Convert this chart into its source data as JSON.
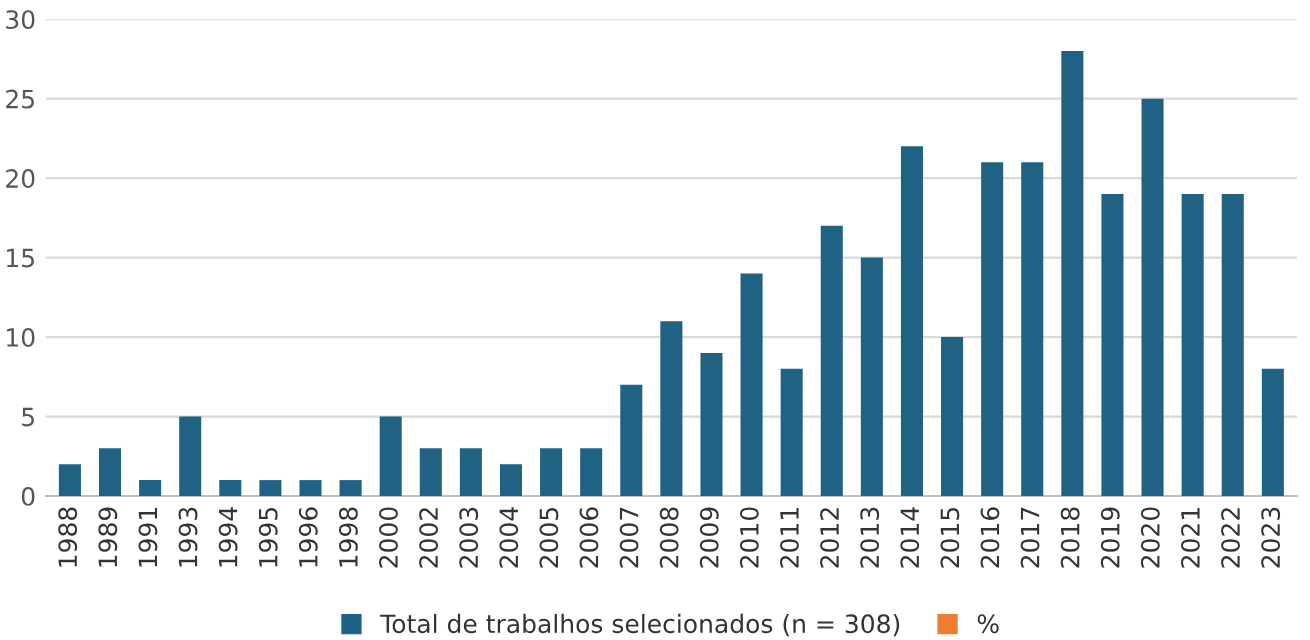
{
  "chart_data": {
    "type": "bar",
    "categories": [
      "1988",
      "1989",
      "1991",
      "1993",
      "1994",
      "1995",
      "1996",
      "1998",
      "2000",
      "2002",
      "2003",
      "2004",
      "2005",
      "2006",
      "2007",
      "2008",
      "2009",
      "2010",
      "2011",
      "2012",
      "2013",
      "2014",
      "2015",
      "2016",
      "2017",
      "2018",
      "2019",
      "2020",
      "2021",
      "2022",
      "2023"
    ],
    "series": [
      {
        "name": "Total de trabalhos selecionados (n = 308)",
        "color": "#1f6283",
        "values": [
          2,
          3,
          1,
          5,
          1,
          1,
          1,
          1,
          5,
          3,
          3,
          2,
          3,
          3,
          7,
          11,
          9,
          14,
          8,
          17,
          15,
          22,
          10,
          21,
          21,
          28,
          19,
          25,
          19,
          19,
          8
        ]
      },
      {
        "name": "%",
        "color": "#ed7d31",
        "values": [
          null,
          null,
          null,
          null,
          null,
          null,
          null,
          null,
          null,
          null,
          null,
          null,
          null,
          null,
          null,
          null,
          null,
          null,
          null,
          null,
          null,
          null,
          null,
          null,
          null,
          null,
          null,
          null,
          null,
          null,
          null
        ]
      }
    ],
    "ylim": [
      0,
      30
    ],
    "yticks": [
      0,
      5,
      10,
      15,
      20,
      25,
      30
    ],
    "grid": "y",
    "legend": "bottom"
  }
}
